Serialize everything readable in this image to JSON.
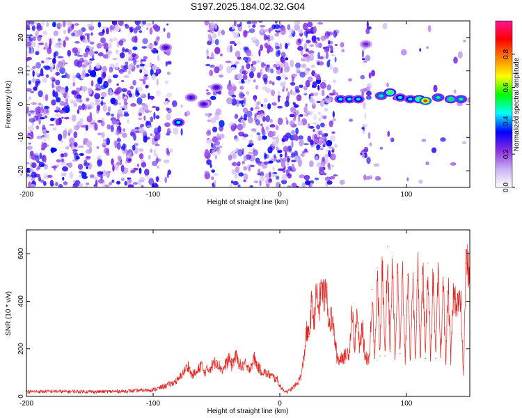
{
  "figure": {
    "title": "S197.2025.184.02.32.G04"
  },
  "chart_data": [
    {
      "type": "heatmap",
      "xlabel": "Height of straight line (km)",
      "ylabel": "Frequency (Hz)",
      "xlim": [
        -200,
        150
      ],
      "ylim": [
        -25,
        25
      ],
      "xticks": [
        -200,
        -100,
        0,
        100
      ],
      "yticks": [
        -20,
        -10,
        0,
        10,
        20
      ],
      "colorbar": {
        "label": "Normalized spectral amplitude",
        "range": [
          0.0,
          1.0
        ],
        "ticks": [
          0.0,
          0.2,
          0.4,
          0.6,
          0.8
        ],
        "tick_labels": [
          "0.0",
          "0.2",
          "0.4",
          "0.6",
          "0.8"
        ],
        "colors": [
          "#ffffff",
          "#c9b0f0",
          "#8a2be2",
          "#0000ff",
          "#00ffff",
          "#00ff00",
          "#ffff00",
          "#ff8000",
          "#ff0000",
          "#ff1493"
        ]
      },
      "gap_regions_x": [
        [
          -95,
          -90
        ],
        [
          -87,
          -58
        ],
        [
          -45,
          -40
        ],
        [
          45,
          65
        ],
        [
          72,
          150
        ]
      ],
      "features": [
        {
          "x": -90,
          "y": 17,
          "amplitude": 0.3
        },
        {
          "x": -80,
          "y": -5.5,
          "amplitude": 0.45
        },
        {
          "x": -70,
          "y": 2,
          "amplitude": 0.3
        },
        {
          "x": -60,
          "y": 0,
          "amplitude": 0.3
        },
        {
          "x": -50,
          "y": 5,
          "amplitude": 0.3
        },
        {
          "x": 48,
          "y": 1.5,
          "amplitude": 0.45
        },
        {
          "x": 55,
          "y": 1.5,
          "amplitude": 0.45
        },
        {
          "x": 62,
          "y": 1.5,
          "amplitude": 0.45
        },
        {
          "x": 68,
          "y": 18,
          "amplitude": 0.25
        },
        {
          "x": 80,
          "y": 2.5,
          "amplitude": 0.5
        },
        {
          "x": 87,
          "y": 3.5,
          "amplitude": 0.6
        },
        {
          "x": 95,
          "y": 2,
          "amplitude": 0.45
        },
        {
          "x": 103,
          "y": 1.5,
          "amplitude": 0.45
        },
        {
          "x": 110,
          "y": 1.5,
          "amplitude": 0.6
        },
        {
          "x": 115,
          "y": 1,
          "amplitude": 0.85
        },
        {
          "x": 125,
          "y": 2,
          "amplitude": 0.5
        },
        {
          "x": 135,
          "y": 1.5,
          "amplitude": 0.55
        },
        {
          "x": 143,
          "y": 1.5,
          "amplitude": 0.5
        }
      ]
    },
    {
      "type": "line",
      "xlabel": "Height of straight line (km)",
      "ylabel": "SNR (10 * v/v)",
      "xlim": [
        -200,
        150
      ],
      "ylim": [
        0,
        700
      ],
      "xticks": [
        -200,
        -100,
        0,
        100
      ],
      "yticks": [
        0,
        200,
        400,
        600
      ],
      "color": "#e8211d",
      "series": [
        {
          "points": [
            [
              -200,
              20
            ],
            [
              -190,
              20
            ],
            [
              -180,
              21
            ],
            [
              -170,
              20
            ],
            [
              -160,
              21
            ],
            [
              -150,
              20
            ],
            [
              -140,
              20
            ],
            [
              -130,
              21
            ],
            [
              -120,
              22
            ],
            [
              -110,
              25
            ],
            [
              -100,
              28
            ],
            [
              -95,
              35
            ],
            [
              -90,
              45
            ],
            [
              -85,
              55
            ],
            [
              -80,
              70
            ],
            [
              -75,
              110
            ],
            [
              -72,
              130
            ],
            [
              -70,
              90
            ],
            [
              -65,
              100
            ],
            [
              -62,
              140
            ],
            [
              -60,
              100
            ],
            [
              -55,
              120
            ],
            [
              -50,
              150
            ],
            [
              -48,
              130
            ],
            [
              -45,
              110
            ],
            [
              -40,
              160
            ],
            [
              -38,
              130
            ],
            [
              -35,
              170
            ],
            [
              -33,
              150
            ],
            [
              -30,
              120
            ],
            [
              -28,
              140
            ],
            [
              -25,
              110
            ],
            [
              -20,
              160
            ],
            [
              -18,
              130
            ],
            [
              -15,
              110
            ],
            [
              -12,
              100
            ],
            [
              -10,
              95
            ],
            [
              -8,
              90
            ],
            [
              -5,
              80
            ],
            [
              -2,
              70
            ],
            [
              0,
              45
            ],
            [
              3,
              25
            ],
            [
              6,
              20
            ],
            [
              10,
              35
            ],
            [
              14,
              55
            ],
            [
              17,
              90
            ],
            [
              19,
              160
            ],
            [
              21,
              270
            ],
            [
              23,
              250
            ],
            [
              25,
              380
            ],
            [
              27,
              320
            ],
            [
              29,
              430
            ],
            [
              31,
              360
            ],
            [
              33,
              480
            ],
            [
              35,
              400
            ],
            [
              37,
              460
            ],
            [
              39,
              300
            ],
            [
              41,
              330
            ],
            [
              43,
              260
            ],
            [
              45,
              170
            ],
            [
              47,
              150
            ],
            [
              49,
              170
            ],
            [
              51,
              165
            ],
            [
              53,
              180
            ],
            [
              55,
              190
            ],
            [
              57,
              380
            ],
            [
              59,
              200
            ],
            [
              61,
              350
            ],
            [
              63,
              190
            ],
            [
              65,
              300
            ],
            [
              67,
              180
            ],
            [
              69,
              160
            ],
            [
              71,
              170
            ],
            [
              73,
              450
            ],
            [
              75,
              160
            ],
            [
              77,
              540
            ],
            [
              79,
              170
            ],
            [
              81,
              550
            ],
            [
              83,
              170
            ],
            [
              85,
              630
            ],
            [
              87,
              200
            ],
            [
              89,
              590
            ],
            [
              91,
              160
            ],
            [
              93,
              520
            ],
            [
              95,
              180
            ],
            [
              97,
              510
            ],
            [
              99,
              150
            ],
            [
              101,
              510
            ],
            [
              103,
              160
            ],
            [
              105,
              490
            ],
            [
              107,
              160
            ],
            [
              109,
              530
            ],
            [
              111,
              170
            ],
            [
              113,
              540
            ],
            [
              115,
              160
            ],
            [
              117,
              560
            ],
            [
              119,
              170
            ],
            [
              121,
              500
            ],
            [
              123,
              160
            ],
            [
              125,
              490
            ],
            [
              127,
              170
            ],
            [
              129,
              480
            ],
            [
              131,
              150
            ],
            [
              133,
              460
            ],
            [
              135,
              150
            ],
            [
              137,
              420
            ],
            [
              139,
              410
            ],
            [
              141,
              400
            ],
            [
              143,
              380
            ],
            [
              145,
              90
            ],
            [
              147,
              560
            ],
            [
              150,
              540
            ]
          ]
        }
      ]
    }
  ]
}
